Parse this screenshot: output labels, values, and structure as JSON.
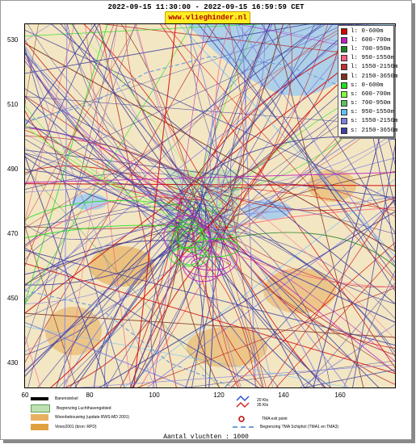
{
  "header": {
    "title": "2022-09-15 11:30:00 - 2022-09-15 16:59:59 CET",
    "site_badge": "www.vlieghinder.nl"
  },
  "map": {
    "y_ticks": [
      "530",
      "510",
      "490",
      "470",
      "450",
      "430"
    ],
    "x_ticks": [
      "60",
      "80",
      "100",
      "120",
      "140",
      "160"
    ],
    "colors": {
      "water": "#aed0e8",
      "land": "#f3e6c3",
      "residential": "#e8b060",
      "airport": "#bfe0b0"
    }
  },
  "legend": {
    "items": [
      {
        "label": "l: 0-600m",
        "color": "#d40000"
      },
      {
        "label": "l: 600-700m",
        "color": "#c020c0"
      },
      {
        "label": "l: 700-950m",
        "color": "#208020"
      },
      {
        "label": "l: 950-1550m",
        "color": "#ff6080"
      },
      {
        "label": "l: 1550-2150m",
        "color": "#c03030"
      },
      {
        "label": "l: 2150-3650m",
        "color": "#803020"
      },
      {
        "label": "s: 0-600m",
        "color": "#20e020"
      },
      {
        "label": "s: 600-700m",
        "color": "#80ff40"
      },
      {
        "label": "s: 700-950m",
        "color": "#60c060"
      },
      {
        "label": "s: 950-1550m",
        "color": "#60c0ff"
      },
      {
        "label": "s: 1550-2150m",
        "color": "#8080e0"
      },
      {
        "label": "s: 2150-3650m",
        "color": "#4040a0"
      }
    ]
  },
  "footer": {
    "runway_label": "Banenstelsel",
    "airport_boundary_label": "Begrenzing Luchthavengebied",
    "residential_label": "Woonbebouwing (update RWS-MD 2001)",
    "vinex_label": "Vinex2001 (bron: RPD)",
    "wind_label_1": "20 Kts",
    "wind_label_2": "35 Kts",
    "tma_exit_label": "TMA exit point",
    "tma_boundary_label": "Begrenzing TMA Schiphol  (TMA1 en TMA3)",
    "flight_count": "Aantal vluchten : 1000"
  }
}
